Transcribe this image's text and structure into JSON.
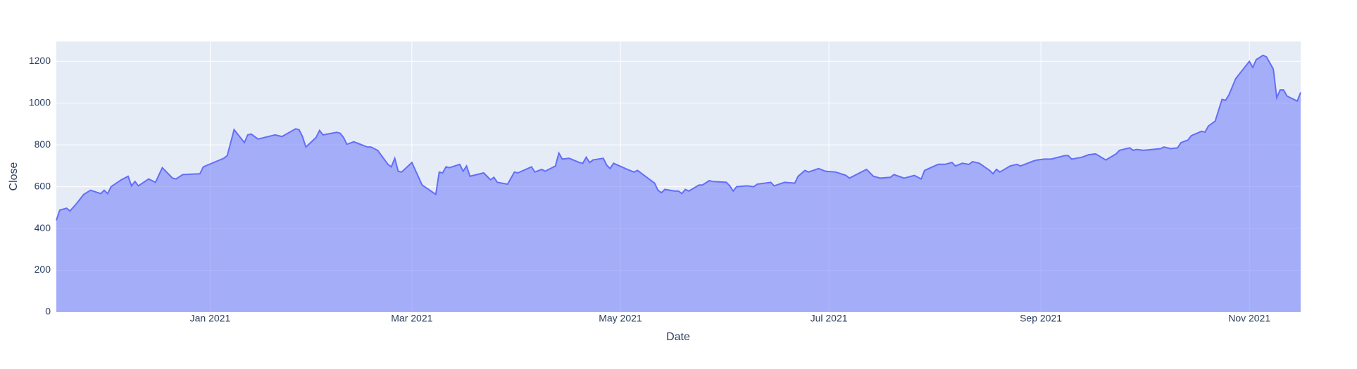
{
  "chart_data": {
    "type": "area",
    "x_label": "Date",
    "y_label": "Close",
    "color": "#636efa",
    "grid": true,
    "x": [
      "2020-11-17",
      "2020-11-18",
      "2020-11-20",
      "2020-11-21",
      "2020-11-23",
      "2020-11-25",
      "2020-11-27",
      "2020-11-30",
      "2020-12-01",
      "2020-12-02",
      "2020-12-03",
      "2020-12-06",
      "2020-12-08",
      "2020-12-09",
      "2020-12-10",
      "2020-12-11",
      "2020-12-14",
      "2020-12-16",
      "2020-12-18",
      "2020-12-21",
      "2020-12-22",
      "2020-12-24",
      "2020-12-29",
      "2020-12-30",
      "2021-01-05",
      "2021-01-06",
      "2021-01-08",
      "2021-01-11",
      "2021-01-12",
      "2021-01-13",
      "2021-01-15",
      "2021-01-20",
      "2021-01-22",
      "2021-01-26",
      "2021-01-27",
      "2021-01-28",
      "2021-01-29",
      "2021-02-01",
      "2021-02-02",
      "2021-02-03",
      "2021-02-07",
      "2021-02-08",
      "2021-02-09",
      "2021-02-10",
      "2021-02-12",
      "2021-02-16",
      "2021-02-17",
      "2021-02-19",
      "2021-02-22",
      "2021-02-23",
      "2021-02-24",
      "2021-02-25",
      "2021-02-26",
      "2021-03-01",
      "2021-03-04",
      "2021-03-08",
      "2021-03-09",
      "2021-03-10",
      "2021-03-11",
      "2021-03-12",
      "2021-03-15",
      "2021-03-16",
      "2021-03-17",
      "2021-03-18",
      "2021-03-22",
      "2021-03-23",
      "2021-03-24",
      "2021-03-25",
      "2021-03-26",
      "2021-03-29",
      "2021-03-31",
      "2021-04-01",
      "2021-04-05",
      "2021-04-06",
      "2021-04-08",
      "2021-04-09",
      "2021-04-12",
      "2021-04-13",
      "2021-04-14",
      "2021-04-16",
      "2021-04-19",
      "2021-04-20",
      "2021-04-21",
      "2021-04-22",
      "2021-04-23",
      "2021-04-26",
      "2021-04-27",
      "2021-04-28",
      "2021-04-29",
      "2021-05-03",
      "2021-05-05",
      "2021-05-06",
      "2021-05-11",
      "2021-05-12",
      "2021-05-13",
      "2021-05-14",
      "2021-05-17",
      "2021-05-18",
      "2021-05-19",
      "2021-05-20",
      "2021-05-21",
      "2021-05-24",
      "2021-05-25",
      "2021-05-27",
      "2021-05-28",
      "2021-06-01",
      "2021-06-02",
      "2021-06-03",
      "2021-06-04",
      "2021-06-07",
      "2021-06-09",
      "2021-06-10",
      "2021-06-14",
      "2021-06-15",
      "2021-06-18",
      "2021-06-21",
      "2021-06-22",
      "2021-06-24",
      "2021-06-25",
      "2021-06-28",
      "2021-06-30",
      "2021-07-03",
      "2021-07-06",
      "2021-07-07",
      "2021-07-12",
      "2021-07-14",
      "2021-07-16",
      "2021-07-19",
      "2021-07-20",
      "2021-07-23",
      "2021-07-26",
      "2021-07-28",
      "2021-07-29",
      "2021-08-02",
      "2021-08-04",
      "2021-08-06",
      "2021-08-07",
      "2021-08-09",
      "2021-08-11",
      "2021-08-12",
      "2021-08-14",
      "2021-08-17",
      "2021-08-18",
      "2021-08-19",
      "2021-08-20",
      "2021-08-23",
      "2021-08-25",
      "2021-08-26",
      "2021-08-30",
      "2021-08-31",
      "2021-09-02",
      "2021-09-04",
      "2021-09-08",
      "2021-09-09",
      "2021-09-10",
      "2021-09-13",
      "2021-09-15",
      "2021-09-17",
      "2021-09-20",
      "2021-09-23",
      "2021-09-24",
      "2021-09-27",
      "2021-09-28",
      "2021-09-29",
      "2021-10-01",
      "2021-10-06",
      "2021-10-07",
      "2021-10-09",
      "2021-10-11",
      "2021-10-12",
      "2021-10-14",
      "2021-10-15",
      "2021-10-18",
      "2021-10-19",
      "2021-10-20",
      "2021-10-22",
      "2021-10-24",
      "2021-10-25",
      "2021-10-26",
      "2021-10-28",
      "2021-11-01",
      "2021-11-02",
      "2021-11-03",
      "2021-11-05",
      "2021-11-06",
      "2021-11-08",
      "2021-11-09",
      "2021-11-10",
      "2021-11-11",
      "2021-11-12",
      "2021-11-15",
      "2021-11-16"
    ],
    "values": [
      439,
      488,
      497,
      484,
      521,
      563,
      583,
      567,
      583,
      567,
      600,
      633,
      650,
      604,
      625,
      604,
      637,
      621,
      691,
      641,
      637,
      658,
      662,
      695,
      736,
      749,
      873,
      811,
      848,
      852,
      828,
      848,
      840,
      877,
      873,
      840,
      790,
      836,
      869,
      848,
      860,
      856,
      836,
      803,
      815,
      790,
      790,
      774,
      707,
      695,
      736,
      674,
      670,
      716,
      608,
      563,
      670,
      666,
      695,
      691,
      707,
      674,
      699,
      650,
      666,
      650,
      633,
      645,
      621,
      612,
      670,
      666,
      695,
      670,
      683,
      674,
      699,
      761,
      732,
      736,
      716,
      712,
      741,
      716,
      728,
      736,
      703,
      687,
      712,
      683,
      670,
      678,
      617,
      583,
      571,
      587,
      579,
      579,
      567,
      587,
      579,
      608,
      608,
      629,
      625,
      621,
      604,
      579,
      600,
      604,
      600,
      612,
      621,
      604,
      621,
      617,
      650,
      678,
      670,
      687,
      674,
      670,
      654,
      641,
      683,
      650,
      641,
      645,
      658,
      641,
      654,
      637,
      678,
      707,
      707,
      716,
      699,
      712,
      707,
      720,
      712,
      678,
      662,
      683,
      670,
      699,
      707,
      699,
      724,
      728,
      732,
      732,
      749,
      749,
      732,
      741,
      753,
      757,
      728,
      757,
      774,
      786,
      774,
      778,
      774,
      782,
      790,
      782,
      786,
      811,
      823,
      844,
      865,
      861,
      890,
      914,
      1018,
      1013,
      1039,
      1117,
      1200,
      1171,
      1208,
      1229,
      1221,
      1163,
      1026,
      1063,
      1063,
      1034,
      1010,
      1051
    ],
    "xlim": [
      "2020-11-17",
      "2021-11-16"
    ],
    "xticks": [
      {
        "value": "2021-01-01",
        "label": "Jan 2021"
      },
      {
        "value": "2021-03-01",
        "label": "Mar 2021"
      },
      {
        "value": "2021-05-01",
        "label": "May 2021"
      },
      {
        "value": "2021-07-01",
        "label": "Jul 2021"
      },
      {
        "value": "2021-09-01",
        "label": "Sep 2021"
      },
      {
        "value": "2021-11-01",
        "label": "Nov 2021"
      }
    ],
    "ylim": [
      0,
      1295
    ],
    "yticks": [
      0,
      200,
      400,
      600,
      800,
      1000,
      1200
    ]
  }
}
